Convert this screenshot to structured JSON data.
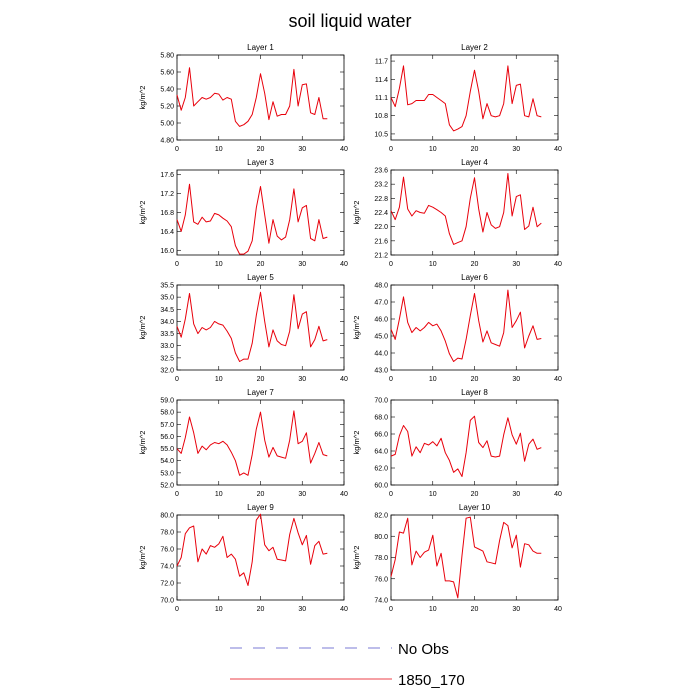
{
  "title": "soil liquid water",
  "legend": [
    {
      "label": "No Obs",
      "style": "dashed",
      "color": "#5050c8"
    },
    {
      "label": "1850_170",
      "style": "solid",
      "color": "#e8000b"
    }
  ],
  "chart_data": [
    {
      "type": "line",
      "title": "Layer 1",
      "ylabel": "kg/m^2",
      "xlim": [
        0,
        40
      ],
      "ylim": [
        4.8,
        5.8
      ],
      "xticks": [
        "0",
        "10",
        "20",
        "30",
        "40"
      ],
      "yticks": [
        "4.80",
        "5.00",
        "5.20",
        "5.40",
        "5.60",
        "5.80"
      ],
      "series": [
        {
          "name": "1850_170",
          "x": [
            0,
            1,
            2,
            3,
            4,
            5,
            6,
            7,
            8,
            9,
            10,
            11,
            12,
            13,
            14,
            15,
            16,
            17,
            18,
            19,
            20,
            21,
            22,
            23,
            24,
            25,
            26,
            27,
            28,
            29,
            30,
            31,
            32,
            33,
            34,
            35,
            36
          ],
          "values": [
            5.33,
            5.15,
            5.3,
            5.65,
            5.2,
            5.25,
            5.3,
            5.28,
            5.3,
            5.35,
            5.34,
            5.27,
            5.3,
            5.28,
            5.02,
            4.96,
            4.98,
            5.02,
            5.1,
            5.3,
            5.58,
            5.35,
            5.04,
            5.25,
            5.08,
            5.1,
            5.1,
            5.2,
            5.63,
            5.2,
            5.45,
            5.46,
            5.12,
            5.1,
            5.3,
            5.05,
            5.05
          ]
        }
      ]
    },
    {
      "type": "line",
      "title": "Layer 2",
      "ylabel": "",
      "xlim": [
        0,
        40
      ],
      "ylim": [
        10.4,
        11.8
      ],
      "xticks": [
        "0",
        "10",
        "20",
        "30",
        "40"
      ],
      "yticks": [
        "10.5",
        "10.8",
        "11.1",
        "11.4",
        "11.7"
      ],
      "series": [
        {
          "name": "1850_170",
          "x": [
            0,
            1,
            2,
            3,
            4,
            5,
            6,
            7,
            8,
            9,
            10,
            11,
            12,
            13,
            14,
            15,
            16,
            17,
            18,
            19,
            20,
            21,
            22,
            23,
            24,
            25,
            26,
            27,
            28,
            29,
            30,
            31,
            32,
            33,
            34,
            35,
            36
          ],
          "values": [
            11.1,
            10.95,
            11.25,
            11.62,
            10.98,
            11.0,
            11.05,
            11.05,
            11.05,
            11.15,
            11.15,
            11.1,
            11.05,
            11.0,
            10.65,
            10.55,
            10.58,
            10.62,
            10.8,
            11.2,
            11.55,
            11.2,
            10.75,
            11.0,
            10.8,
            10.78,
            10.8,
            11.0,
            11.62,
            11.0,
            11.3,
            11.32,
            10.8,
            10.78,
            11.08,
            10.8,
            10.78
          ]
        }
      ]
    },
    {
      "type": "line",
      "title": "Layer 3",
      "ylabel": "kg/m^2",
      "xlim": [
        0,
        40
      ],
      "ylim": [
        15.9,
        17.7
      ],
      "xticks": [
        "0",
        "10",
        "20",
        "30",
        "40"
      ],
      "yticks": [
        "16.0",
        "16.4",
        "16.8",
        "17.2",
        "17.6"
      ],
      "series": [
        {
          "name": "1850_170",
          "x": [
            0,
            1,
            2,
            3,
            4,
            5,
            6,
            7,
            8,
            9,
            10,
            11,
            12,
            13,
            14,
            15,
            16,
            17,
            18,
            19,
            20,
            21,
            22,
            23,
            24,
            25,
            26,
            27,
            28,
            29,
            30,
            31,
            32,
            33,
            34,
            35,
            36
          ],
          "values": [
            16.65,
            16.4,
            16.75,
            17.4,
            16.6,
            16.55,
            16.7,
            16.6,
            16.62,
            16.78,
            16.75,
            16.68,
            16.62,
            16.5,
            16.1,
            15.92,
            15.92,
            15.98,
            16.2,
            16.9,
            17.35,
            16.75,
            16.15,
            16.65,
            16.3,
            16.22,
            16.28,
            16.65,
            17.3,
            16.6,
            16.9,
            16.95,
            16.25,
            16.2,
            16.65,
            16.25,
            16.28
          ]
        }
      ]
    },
    {
      "type": "line",
      "title": "Layer 4",
      "ylabel": "kg/m^2",
      "xlim": [
        0,
        40
      ],
      "ylim": [
        21.2,
        23.6
      ],
      "xticks": [
        "0",
        "10",
        "20",
        "30",
        "40"
      ],
      "yticks": [
        "21.2",
        "21.6",
        "22.0",
        "22.4",
        "22.8",
        "23.2",
        "23.6"
      ],
      "series": [
        {
          "name": "1850_170",
          "x": [
            0,
            1,
            2,
            3,
            4,
            5,
            6,
            7,
            8,
            9,
            10,
            11,
            12,
            13,
            14,
            15,
            16,
            17,
            18,
            19,
            20,
            21,
            22,
            23,
            24,
            25,
            26,
            27,
            28,
            29,
            30,
            31,
            32,
            33,
            34,
            35,
            36
          ],
          "values": [
            22.45,
            22.2,
            22.55,
            23.4,
            22.5,
            22.3,
            22.45,
            22.4,
            22.38,
            22.6,
            22.55,
            22.48,
            22.4,
            22.3,
            21.8,
            21.5,
            21.55,
            21.6,
            22.0,
            22.8,
            23.38,
            22.5,
            21.85,
            22.4,
            22.05,
            21.95,
            22.0,
            22.4,
            23.5,
            22.3,
            22.85,
            22.9,
            21.92,
            22.02,
            22.55,
            22.0,
            22.1
          ]
        }
      ]
    },
    {
      "type": "line",
      "title": "Layer 5",
      "ylabel": "kg/m^2",
      "xlim": [
        0,
        40
      ],
      "ylim": [
        32.0,
        35.5
      ],
      "xticks": [
        "0",
        "10",
        "20",
        "30",
        "40"
      ],
      "yticks": [
        "32.0",
        "32.5",
        "33.0",
        "33.5",
        "34.0",
        "34.5",
        "35.0",
        "35.5"
      ],
      "series": [
        {
          "name": "1850_170",
          "x": [
            0,
            1,
            2,
            3,
            4,
            5,
            6,
            7,
            8,
            9,
            10,
            11,
            12,
            13,
            14,
            15,
            16,
            17,
            18,
            19,
            20,
            21,
            22,
            23,
            24,
            25,
            26,
            27,
            28,
            29,
            30,
            31,
            32,
            33,
            34,
            35,
            36
          ],
          "values": [
            33.8,
            33.35,
            34.1,
            35.15,
            33.9,
            33.5,
            33.75,
            33.65,
            33.75,
            34.0,
            33.9,
            33.85,
            33.6,
            33.3,
            32.7,
            32.35,
            32.45,
            32.45,
            33.1,
            34.25,
            35.2,
            34.0,
            32.95,
            33.65,
            33.2,
            33.05,
            33.0,
            33.6,
            35.1,
            33.7,
            34.3,
            34.4,
            32.95,
            33.25,
            33.8,
            33.2,
            33.25
          ]
        }
      ]
    },
    {
      "type": "line",
      "title": "Layer 6",
      "ylabel": "kg/m^2",
      "xlim": [
        0,
        40
      ],
      "ylim": [
        43.0,
        48.0
      ],
      "xticks": [
        "0",
        "10",
        "20",
        "30",
        "40"
      ],
      "yticks": [
        "43.0",
        "44.0",
        "45.0",
        "46.0",
        "47.0",
        "48.0"
      ],
      "series": [
        {
          "name": "1850_170",
          "x": [
            0,
            1,
            2,
            3,
            4,
            5,
            6,
            7,
            8,
            9,
            10,
            11,
            12,
            13,
            14,
            15,
            16,
            17,
            18,
            19,
            20,
            21,
            22,
            23,
            24,
            25,
            26,
            27,
            28,
            29,
            30,
            31,
            32,
            33,
            34,
            35,
            36
          ],
          "values": [
            45.4,
            44.8,
            46.0,
            47.3,
            45.8,
            45.2,
            45.5,
            45.3,
            45.5,
            45.8,
            45.6,
            45.7,
            45.3,
            44.7,
            43.95,
            43.5,
            43.7,
            43.65,
            44.8,
            46.2,
            47.5,
            45.9,
            44.65,
            45.3,
            44.6,
            44.5,
            44.4,
            45.2,
            47.7,
            45.5,
            45.9,
            46.4,
            44.3,
            45.0,
            45.6,
            44.8,
            44.85
          ]
        }
      ]
    },
    {
      "type": "line",
      "title": "Layer 7",
      "ylabel": "kg/m^2",
      "xlim": [
        0,
        40
      ],
      "ylim": [
        52.0,
        59.0
      ],
      "xticks": [
        "0",
        "10",
        "20",
        "30",
        "40"
      ],
      "yticks": [
        "52.0",
        "53.0",
        "54.0",
        "55.0",
        "56.0",
        "57.0",
        "58.0",
        "59.0"
      ],
      "series": [
        {
          "name": "1850_170",
          "x": [
            0,
            1,
            2,
            3,
            4,
            5,
            6,
            7,
            8,
            9,
            10,
            11,
            12,
            13,
            14,
            15,
            16,
            17,
            18,
            19,
            20,
            21,
            22,
            23,
            24,
            25,
            26,
            27,
            28,
            29,
            30,
            31,
            32,
            33,
            34,
            35,
            36
          ],
          "values": [
            55.0,
            54.6,
            55.9,
            57.6,
            56.3,
            54.6,
            55.2,
            54.9,
            55.3,
            55.5,
            55.4,
            55.6,
            55.3,
            54.7,
            54.0,
            52.8,
            53.0,
            52.8,
            54.5,
            56.6,
            58.0,
            55.7,
            54.3,
            55.1,
            54.4,
            54.3,
            54.2,
            55.7,
            58.1,
            55.4,
            55.6,
            56.3,
            53.8,
            54.6,
            55.5,
            54.5,
            54.4
          ]
        }
      ]
    },
    {
      "type": "line",
      "title": "Layer 8",
      "ylabel": "kg/m^2",
      "xlim": [
        0,
        40
      ],
      "ylim": [
        60.0,
        70.0
      ],
      "xticks": [
        "0",
        "10",
        "20",
        "30",
        "40"
      ],
      "yticks": [
        "60.0",
        "62.0",
        "64.0",
        "66.0",
        "68.0",
        "70.0"
      ],
      "series": [
        {
          "name": "1850_170",
          "x": [
            0,
            1,
            2,
            3,
            4,
            5,
            6,
            7,
            8,
            9,
            10,
            11,
            12,
            13,
            14,
            15,
            16,
            17,
            18,
            19,
            20,
            21,
            22,
            23,
            24,
            25,
            26,
            27,
            28,
            29,
            30,
            31,
            32,
            33,
            34,
            35,
            36
          ],
          "values": [
            63.4,
            63.6,
            65.8,
            67.0,
            66.3,
            63.4,
            64.5,
            63.8,
            64.9,
            64.7,
            65.1,
            64.6,
            65.5,
            63.8,
            62.9,
            61.5,
            61.9,
            61.0,
            63.8,
            67.6,
            68.1,
            65.0,
            64.4,
            65.2,
            63.4,
            63.3,
            63.4,
            65.9,
            67.9,
            65.9,
            64.8,
            66.1,
            62.8,
            64.8,
            65.4,
            64.2,
            64.4
          ]
        }
      ]
    },
    {
      "type": "line",
      "title": "Layer 9",
      "ylabel": "kg/m^2",
      "xlim": [
        0,
        40
      ],
      "ylim": [
        70.0,
        80.0
      ],
      "xticks": [
        "0",
        "10",
        "20",
        "30",
        "40"
      ],
      "yticks": [
        "70.0",
        "72.0",
        "74.0",
        "76.0",
        "78.0",
        "80.0"
      ],
      "series": [
        {
          "name": "1850_170",
          "x": [
            0,
            1,
            2,
            3,
            4,
            5,
            6,
            7,
            8,
            9,
            10,
            11,
            12,
            13,
            14,
            15,
            16,
            17,
            18,
            19,
            20,
            21,
            22,
            23,
            24,
            25,
            26,
            27,
            28,
            29,
            30,
            31,
            32,
            33,
            34,
            35,
            36
          ],
          "values": [
            74.0,
            75.0,
            77.8,
            78.5,
            78.7,
            74.5,
            76.0,
            75.4,
            76.4,
            76.2,
            76.6,
            77.5,
            75.0,
            75.4,
            74.8,
            72.8,
            73.2,
            71.7,
            74.5,
            79.4,
            80.1,
            76.5,
            75.8,
            76.2,
            74.8,
            74.7,
            74.6,
            77.7,
            79.6,
            77.9,
            76.5,
            77.6,
            74.2,
            76.4,
            76.9,
            75.4,
            75.5
          ]
        }
      ]
    },
    {
      "type": "line",
      "title": "Layer 10",
      "ylabel": "kg/m^2",
      "xlim": [
        0,
        40
      ],
      "ylim": [
        74.0,
        82.0
      ],
      "xticks": [
        "0",
        "10",
        "20",
        "30",
        "40"
      ],
      "yticks": [
        "74.0",
        "76.0",
        "78.0",
        "80.0",
        "82.0"
      ],
      "series": [
        {
          "name": "1850_170",
          "x": [
            0,
            1,
            2,
            3,
            4,
            5,
            6,
            7,
            8,
            9,
            10,
            11,
            12,
            13,
            14,
            15,
            16,
            17,
            18,
            19,
            20,
            21,
            22,
            23,
            24,
            25,
            26,
            27,
            28,
            29,
            30,
            31,
            32,
            33,
            34,
            35,
            36
          ],
          "values": [
            76.2,
            77.8,
            80.4,
            80.3,
            81.7,
            77.3,
            78.6,
            78.0,
            78.5,
            78.7,
            80.1,
            77.2,
            78.4,
            75.8,
            75.8,
            75.7,
            74.2,
            78.2,
            81.7,
            81.8,
            79.0,
            78.8,
            78.6,
            77.6,
            77.5,
            77.4,
            79.6,
            81.3,
            81.0,
            78.9,
            80.1,
            77.1,
            79.3,
            79.2,
            78.6,
            78.4,
            78.4
          ]
        }
      ]
    }
  ]
}
